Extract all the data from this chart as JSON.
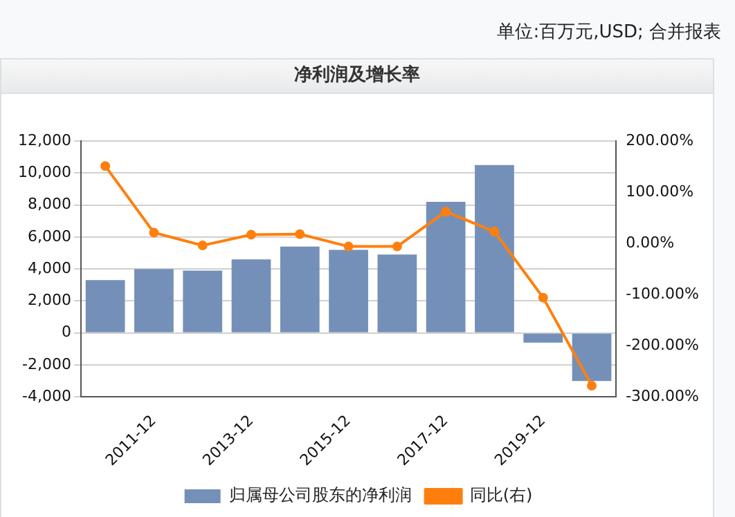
{
  "chart_data": {
    "type": "bar",
    "title": "净利润及增长率",
    "annotations": [
      "单位:百万元,USD; 合并报表"
    ],
    "categories": [
      null,
      "2011-12",
      null,
      "2013-12",
      null,
      "2015-12",
      null,
      "2017-12",
      null,
      "2019-12",
      null
    ],
    "series": [
      {
        "name": "归属母公司股东的净利润",
        "color": "#7590b8",
        "values": [
          3300,
          4000,
          3900,
          4600,
          5400,
          5200,
          4900,
          8200,
          10500,
          -600,
          -3000
        ]
      },
      {
        "name": "同比(右)",
        "type": "line",
        "axis": "y2",
        "color": "#ff7f0e",
        "marker": "circle",
        "values": [
          151,
          21,
          -4,
          17,
          18,
          -6,
          -6,
          62,
          23,
          -106,
          -278
        ]
      }
    ],
    "ylim": [
      -4000,
      12000
    ],
    "yticks": [
      {
        "value": -4000,
        "label": "-4,000"
      },
      {
        "value": -2000,
        "label": "-2,000"
      },
      {
        "value": 0,
        "label": "0"
      },
      {
        "value": 2000,
        "label": "2,000"
      },
      {
        "value": 4000,
        "label": "4,000"
      },
      {
        "value": 6000,
        "label": "6,000"
      },
      {
        "value": 8000,
        "label": "8,000"
      },
      {
        "value": 10000,
        "label": "10,000"
      },
      {
        "value": 12000,
        "label": "12,000"
      }
    ],
    "y2lim": [
      -300,
      200
    ],
    "y2ticks": [
      {
        "value": -300,
        "label": "-300.00%"
      },
      {
        "value": -200,
        "label": "-200.00%"
      },
      {
        "value": -100,
        "label": "-100.00%"
      },
      {
        "value": 0,
        "label": "0.00%"
      },
      {
        "value": 100,
        "label": "100.00%"
      },
      {
        "value": 200,
        "label": "200.00%"
      }
    ],
    "grid": "y",
    "legend": "bottom"
  }
}
